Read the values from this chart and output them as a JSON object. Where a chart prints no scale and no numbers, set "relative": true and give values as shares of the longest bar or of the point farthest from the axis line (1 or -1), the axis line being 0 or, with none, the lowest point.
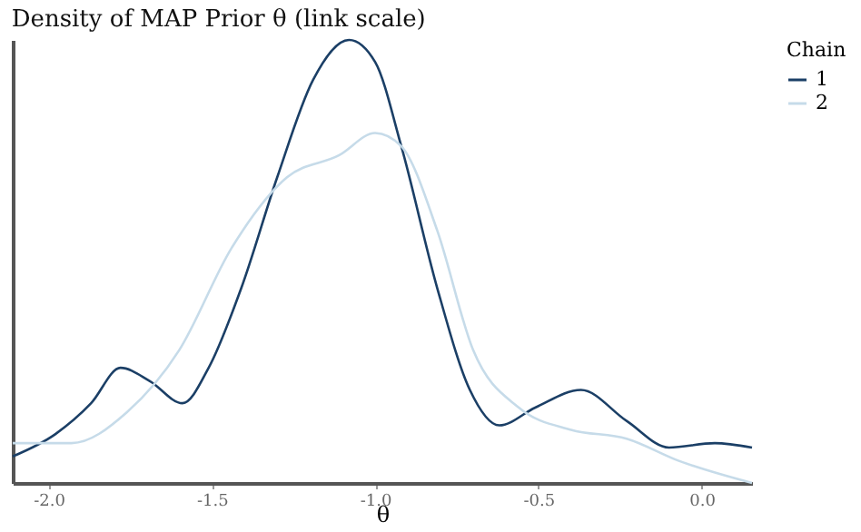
{
  "chart_data": {
    "type": "line",
    "title": "Density of MAP Prior θ (link scale)",
    "xlabel": "θ",
    "legend_title": "Chain",
    "relative": true,
    "legend": "right",
    "grid": false,
    "marker": "none",
    "line_style": "solid",
    "xlim": [
      -2.11,
      0.154
    ],
    "xticks": [
      {
        "value": -2,
        "label": "-2.0"
      },
      {
        "value": -1.5,
        "label": "-1.5"
      },
      {
        "value": -1,
        "label": "-1.0"
      },
      {
        "value": -0.5,
        "label": "-0.5"
      },
      {
        "value": 0,
        "label": "0.0"
      }
    ],
    "series": [
      {
        "name": "1",
        "color": "#1b3f66",
        "x": [
          -2.11,
          -1.98,
          -1.87,
          -1.78,
          -1.69,
          -1.59,
          -1.51,
          -1.41,
          -1.3,
          -1.19,
          -1.08,
          -1.0,
          -0.92,
          -0.81,
          -0.71,
          -0.62,
          -0.51,
          -0.37,
          -0.23,
          -0.1,
          0.04,
          0.154
        ],
        "values": [
          0.06,
          0.11,
          0.18,
          0.26,
          0.23,
          0.18,
          0.26,
          0.44,
          0.69,
          0.91,
          1.0,
          0.95,
          0.76,
          0.44,
          0.21,
          0.13,
          0.17,
          0.21,
          0.14,
          0.08,
          0.09,
          0.08
        ]
      },
      {
        "name": "2",
        "color": "#c6dbe9",
        "x": [
          -2.11,
          -1.93,
          -1.76,
          -1.6,
          -1.44,
          -1.27,
          -1.11,
          -1.0,
          -0.92,
          -0.81,
          -0.7,
          -0.56,
          -0.4,
          -0.23,
          -0.07,
          0.154
        ],
        "values": [
          0.09,
          0.09,
          0.16,
          0.3,
          0.53,
          0.69,
          0.74,
          0.79,
          0.76,
          0.57,
          0.3,
          0.17,
          0.12,
          0.1,
          0.05,
          0.0
        ]
      }
    ]
  }
}
